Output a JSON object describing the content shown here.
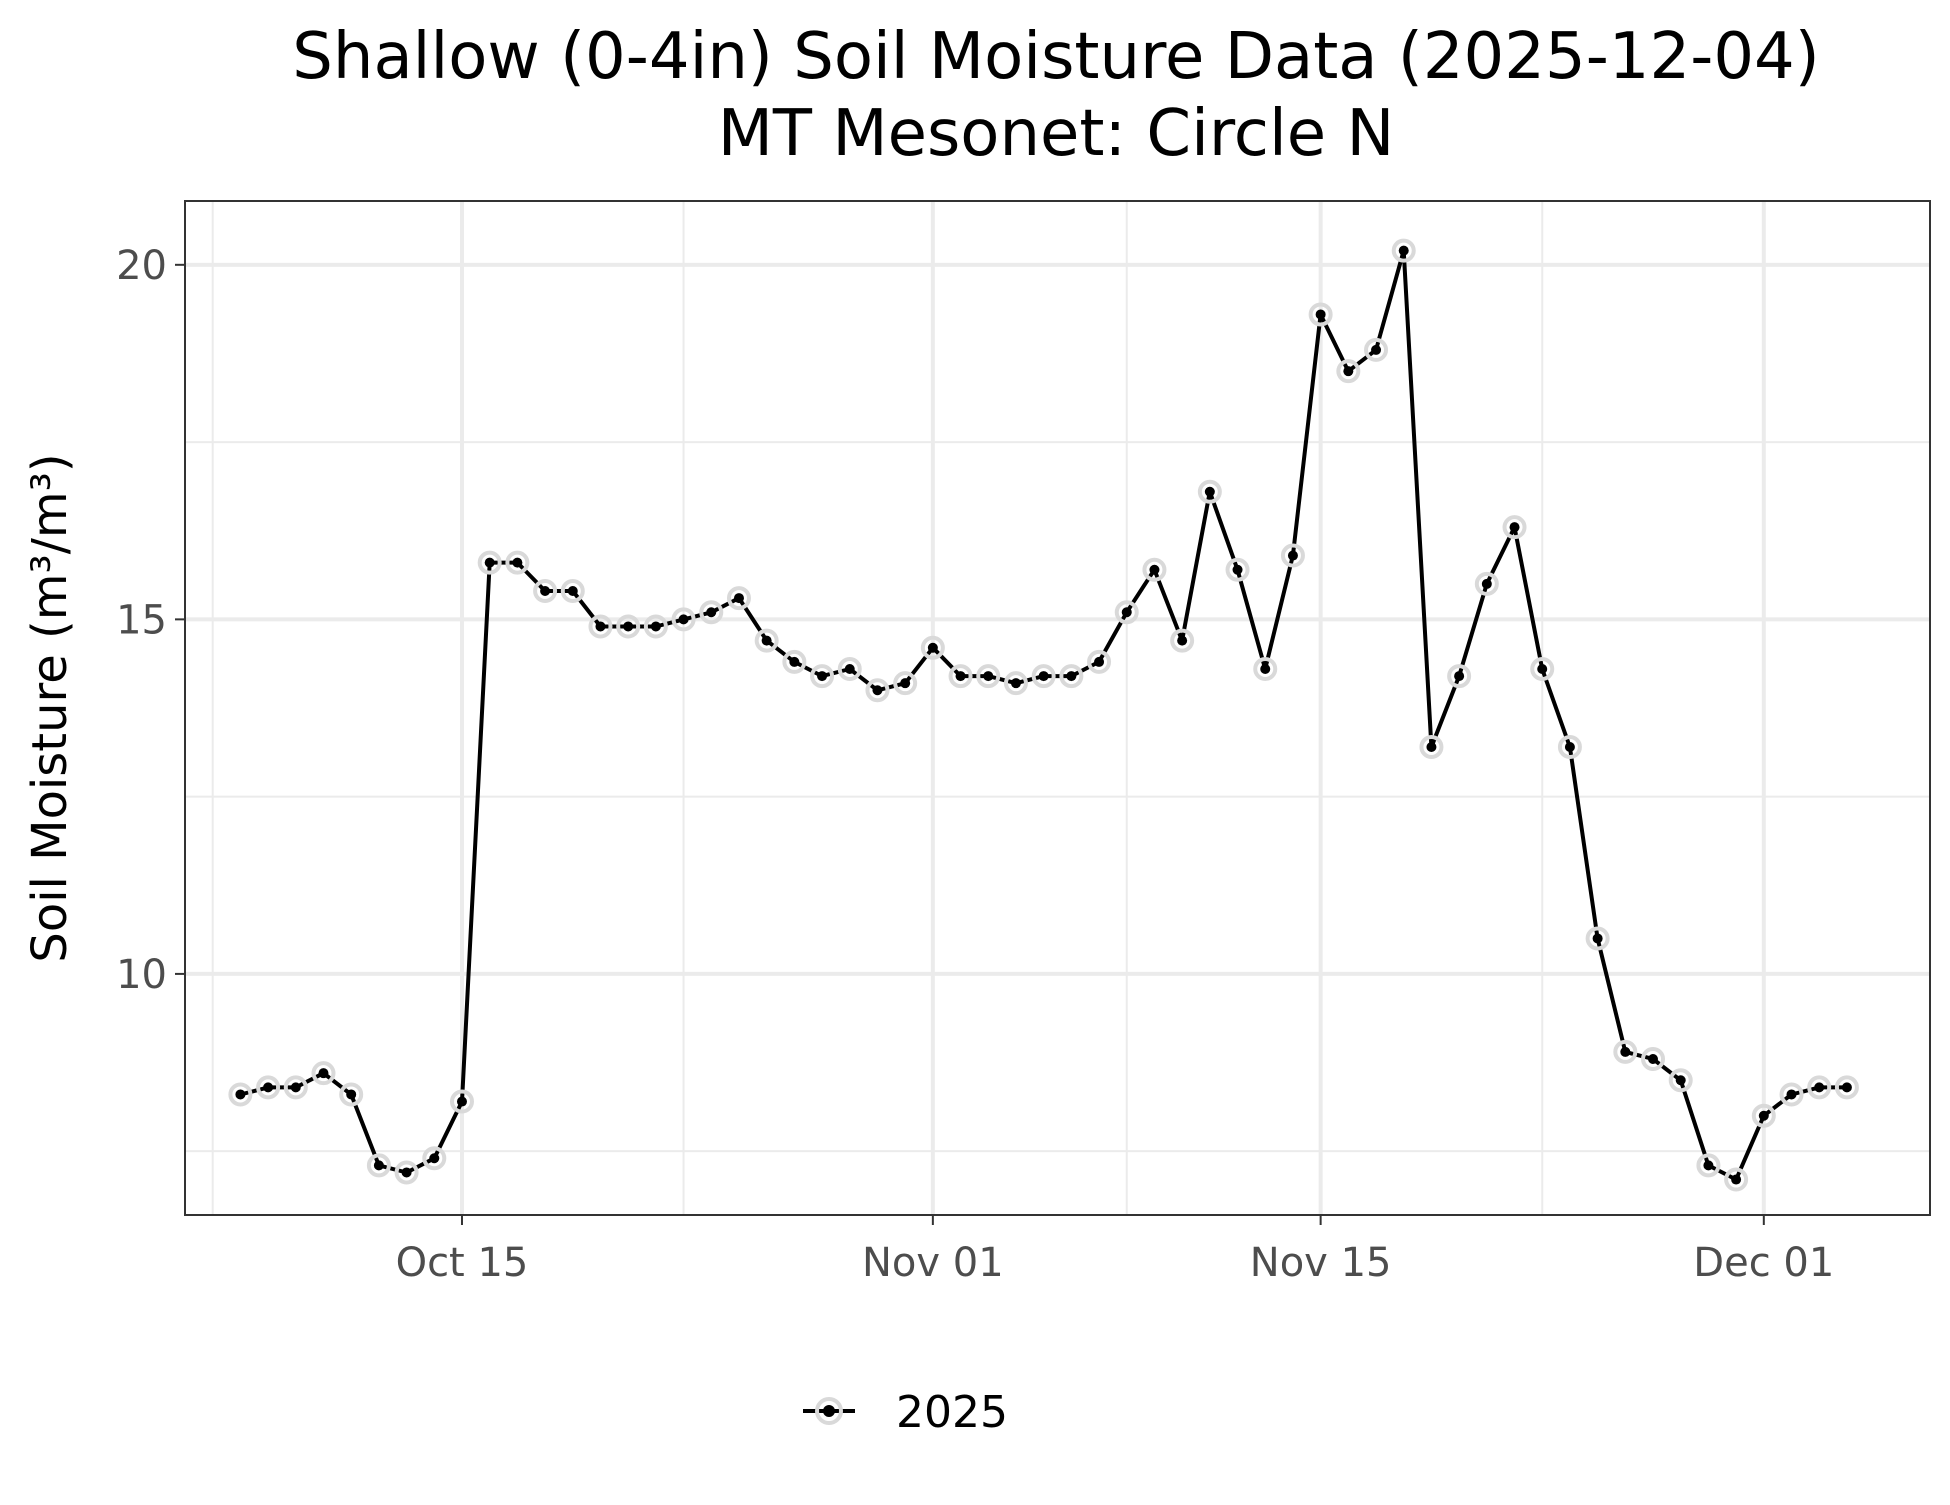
{
  "chart_data": {
    "type": "line",
    "title": "Shallow (0-4in) Soil Moisture Data (2025-12-04)",
    "subtitle": "MT Mesonet: Circle N",
    "xlabel": "",
    "ylabel": "Soil Moisture (m³/m³)",
    "xlim": [
      "2025-10-05",
      "2025-12-07"
    ],
    "ylim": [
      6.6,
      20.9
    ],
    "x_ticks": [
      {
        "date": "2025-10-15",
        "label": "Oct 15"
      },
      {
        "date": "2025-11-01",
        "label": "Nov 01"
      },
      {
        "date": "2025-11-15",
        "label": "Nov 15"
      },
      {
        "date": "2025-12-01",
        "label": "Dec 01"
      }
    ],
    "x_minor_ticks": [
      "2025-10-06",
      "2025-10-23",
      "2025-11-08",
      "2025-11-23"
    ],
    "y_ticks": [
      10,
      15,
      20
    ],
    "y_minor_ticks": [
      7.5,
      12.5,
      17.5
    ],
    "grid": true,
    "legend_position": "bottom",
    "series": [
      {
        "name": "2025",
        "color": "#000000",
        "halo_color": "#d9d9d9",
        "x": [
          "2025-10-07",
          "2025-10-08",
          "2025-10-09",
          "2025-10-10",
          "2025-10-11",
          "2025-10-12",
          "2025-10-13",
          "2025-10-14",
          "2025-10-15",
          "2025-10-16",
          "2025-10-17",
          "2025-10-18",
          "2025-10-19",
          "2025-10-20",
          "2025-10-21",
          "2025-10-22",
          "2025-10-23",
          "2025-10-24",
          "2025-10-25",
          "2025-10-26",
          "2025-10-27",
          "2025-10-28",
          "2025-10-29",
          "2025-10-30",
          "2025-10-31",
          "2025-11-01",
          "2025-11-02",
          "2025-11-03",
          "2025-11-04",
          "2025-11-05",
          "2025-11-06",
          "2025-11-07",
          "2025-11-08",
          "2025-11-09",
          "2025-11-10",
          "2025-11-11",
          "2025-11-12",
          "2025-11-13",
          "2025-11-14",
          "2025-11-15",
          "2025-11-16",
          "2025-11-17",
          "2025-11-18",
          "2025-11-19",
          "2025-11-20",
          "2025-11-21",
          "2025-11-22",
          "2025-11-23",
          "2025-11-24",
          "2025-11-25",
          "2025-11-26",
          "2025-11-27",
          "2025-11-28",
          "2025-11-29",
          "2025-11-30",
          "2025-12-01",
          "2025-12-02",
          "2025-12-03",
          "2025-12-04"
        ],
        "values": [
          8.3,
          8.4,
          8.4,
          8.6,
          8.3,
          7.3,
          7.2,
          7.4,
          8.2,
          15.8,
          15.8,
          15.4,
          15.4,
          14.9,
          14.9,
          14.9,
          15.0,
          15.1,
          15.3,
          14.7,
          14.4,
          14.2,
          14.3,
          14.0,
          14.1,
          14.6,
          14.2,
          14.2,
          14.1,
          14.2,
          14.2,
          14.4,
          15.1,
          15.7,
          14.7,
          16.8,
          15.7,
          14.3,
          15.9,
          19.3,
          18.5,
          18.8,
          20.2,
          13.2,
          14.2,
          15.5,
          16.3,
          14.3,
          13.2,
          10.5,
          8.9,
          8.8,
          8.5,
          7.3,
          7.1,
          8.0,
          8.3,
          8.4,
          8.4
        ]
      }
    ]
  }
}
